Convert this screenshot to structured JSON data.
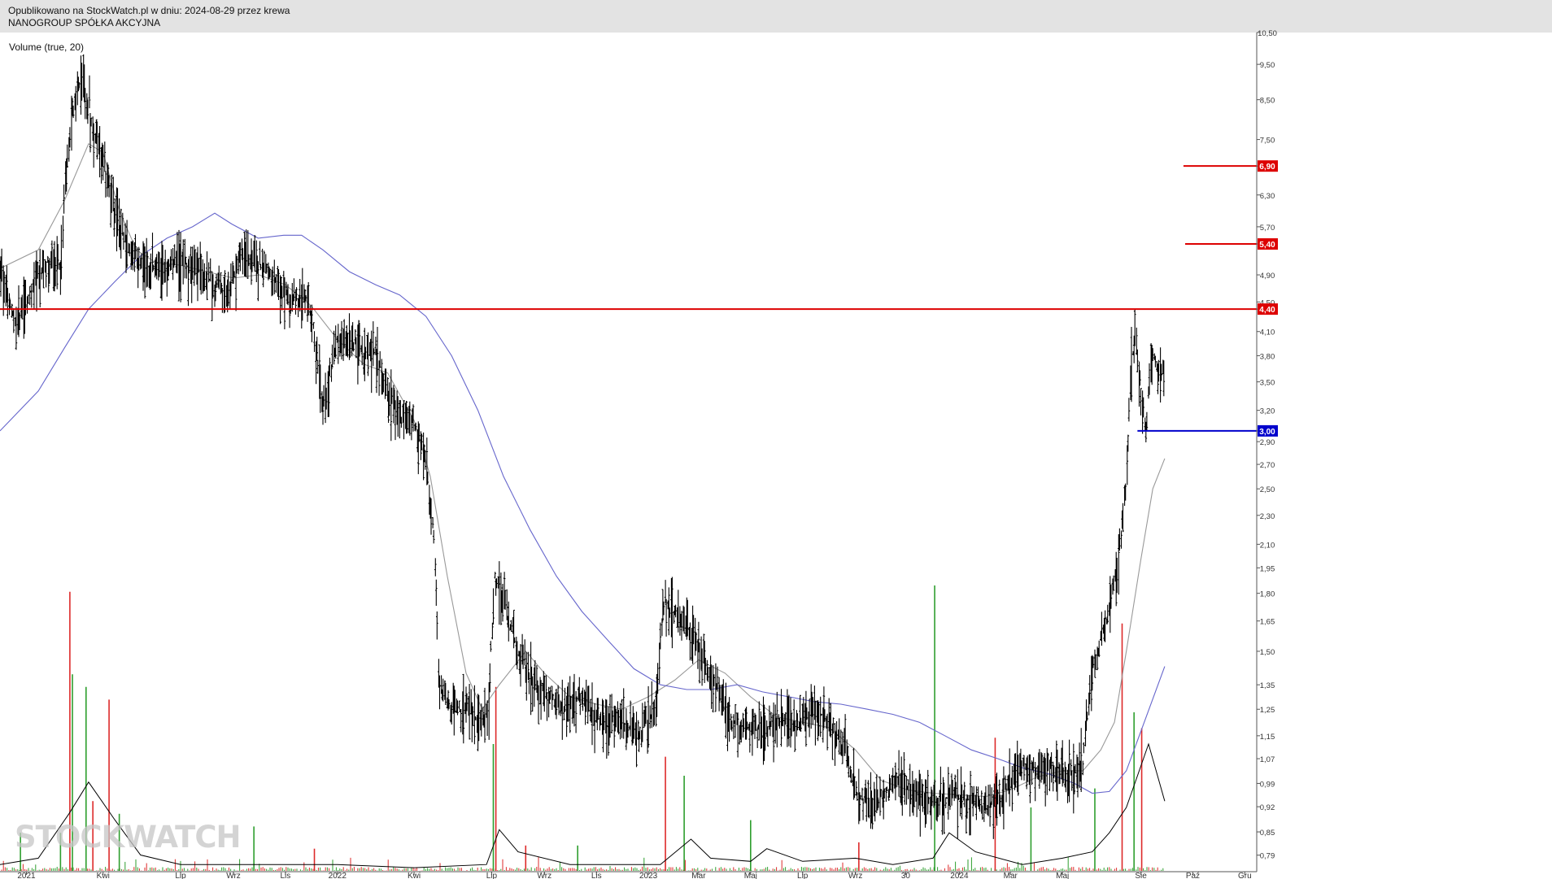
{
  "header": {
    "line1": "Opublikowano na StockWatch.pl w dniu: 2024-08-29 przez krewa",
    "line2": "NANOGROUP SPÓŁKA AKCYJNA"
  },
  "volume_label": "Volume (true, 20)",
  "watermark": "STOCKWATCH",
  "colors": {
    "price": "#000000",
    "ma_short": "#999999",
    "ma_long": "#6666cc",
    "level_red": "#dd0000",
    "level_blue": "#0000cc",
    "volume_up": "#2e9e2e",
    "volume_down": "#dd2a2a",
    "volume_avg": "#000000"
  },
  "chart_data": {
    "type": "line",
    "title": "NANOGROUP SPÓŁKA AKCYJNA",
    "x_axis": {
      "type": "date",
      "range": [
        "2020-12-01",
        "2024-12-15"
      ],
      "tick_labels": [
        {
          "label": "2021",
          "date": "2021-01-01"
        },
        {
          "label": "Kwi",
          "date": "2021-04-01"
        },
        {
          "label": "Lip",
          "date": "2021-07-01"
        },
        {
          "label": "Wrz",
          "date": "2021-09-01"
        },
        {
          "label": "Lis",
          "date": "2021-11-01"
        },
        {
          "label": "2022",
          "date": "2022-01-01"
        },
        {
          "label": "Kwi",
          "date": "2022-04-01"
        },
        {
          "label": "Lip",
          "date": "2022-07-01"
        },
        {
          "label": "Wrz",
          "date": "2022-09-01"
        },
        {
          "label": "Lis",
          "date": "2022-11-01"
        },
        {
          "label": "2023",
          "date": "2023-01-01"
        },
        {
          "label": "Mar",
          "date": "2023-03-01"
        },
        {
          "label": "Maj",
          "date": "2023-05-01"
        },
        {
          "label": "Lip",
          "date": "2023-07-01"
        },
        {
          "label": "Wrz",
          "date": "2023-09-01"
        },
        {
          "label": "30",
          "date": "2023-10-30"
        },
        {
          "label": "2024",
          "date": "2024-01-01"
        },
        {
          "label": "Mar",
          "date": "2024-03-01"
        },
        {
          "label": "Maj",
          "date": "2024-05-01"
        },
        {
          "label": "Sie",
          "date": "2024-08-01"
        },
        {
          "label": "Paź",
          "date": "2024-10-01"
        },
        {
          "label": "Gru",
          "date": "2024-12-01"
        }
      ]
    },
    "y_axis": {
      "scale": "log",
      "range": [
        0.75,
        10.5
      ],
      "tick_labels": [
        "10,50",
        "9,50",
        "8,50",
        "7,50",
        "6,90",
        "6,30",
        "5,70",
        "5,40",
        "4,90",
        "4,50",
        "4,40",
        "4,10",
        "3,80",
        "3,50",
        "3,20",
        "3,00",
        "2,90",
        "2,70",
        "2,50",
        "2,30",
        "2,10",
        "1,95",
        "1,80",
        "1,65",
        "1,50",
        "1,35",
        "1,25",
        "1,15",
        "1,07",
        "0,99",
        "0,92",
        "0,85",
        "0,79"
      ],
      "tick_values": [
        10.5,
        9.5,
        8.5,
        7.5,
        6.9,
        6.3,
        5.7,
        5.4,
        4.9,
        4.5,
        4.4,
        4.1,
        3.8,
        3.5,
        3.2,
        3.0,
        2.9,
        2.7,
        2.5,
        2.3,
        2.1,
        1.95,
        1.8,
        1.65,
        1.5,
        1.35,
        1.25,
        1.15,
        1.07,
        0.99,
        0.92,
        0.85,
        0.79
      ]
    },
    "grid": false,
    "series": [
      {
        "key": "price",
        "style": "ohlc",
        "x": [
          "2020-12-01",
          "2020-12-20",
          "2021-01-10",
          "2021-01-25",
          "2021-02-10",
          "2021-02-20",
          "2021-03-01",
          "2021-03-10",
          "2021-03-20",
          "2021-04-01",
          "2021-04-15",
          "2021-05-01",
          "2021-05-20",
          "2021-06-10",
          "2021-07-01",
          "2021-07-20",
          "2021-08-10",
          "2021-08-25",
          "2021-09-10",
          "2021-09-25",
          "2021-10-10",
          "2021-10-25",
          "2021-11-10",
          "2021-11-25",
          "2021-12-05",
          "2021-12-15",
          "2022-01-01",
          "2022-01-15",
          "2022-02-01",
          "2022-02-15",
          "2022-03-01",
          "2022-03-15",
          "2022-03-25",
          "2022-04-05",
          "2022-04-15",
          "2022-04-25",
          "2022-05-01",
          "2022-05-15",
          "2022-06-01",
          "2022-06-20",
          "2022-06-28",
          "2022-07-05",
          "2022-07-15",
          "2022-08-01",
          "2022-08-20",
          "2022-09-10",
          "2022-09-25",
          "2022-10-10",
          "2022-10-25",
          "2022-11-10",
          "2022-12-01",
          "2022-12-20",
          "2023-01-10",
          "2023-01-20",
          "2023-02-10",
          "2023-03-01",
          "2023-03-20",
          "2023-04-10",
          "2023-05-01",
          "2023-05-20",
          "2023-06-10",
          "2023-07-01",
          "2023-07-15",
          "2023-08-01",
          "2023-08-20",
          "2023-09-05",
          "2023-09-20",
          "2023-10-10",
          "2023-10-25",
          "2023-11-10",
          "2023-12-01",
          "2023-12-20",
          "2024-01-10",
          "2024-02-01",
          "2024-02-20",
          "2024-03-01",
          "2024-03-15",
          "2024-04-01",
          "2024-04-20",
          "2024-05-10",
          "2024-05-25",
          "2024-06-05",
          "2024-06-15",
          "2024-06-25",
          "2024-07-05",
          "2024-07-15",
          "2024-07-22",
          "2024-07-26",
          "2024-08-02",
          "2024-08-08",
          "2024-08-14",
          "2024-08-20",
          "2024-08-29"
        ],
        "close": [
          4.9,
          4.2,
          4.75,
          5.1,
          5.0,
          7.5,
          8.8,
          9.0,
          7.8,
          7.0,
          6.0,
          5.3,
          5.0,
          5.05,
          5.1,
          5.0,
          4.75,
          4.6,
          5.15,
          5.1,
          5.0,
          4.75,
          4.5,
          4.6,
          4.1,
          3.2,
          4.0,
          4.05,
          3.8,
          3.85,
          3.4,
          3.1,
          3.2,
          3.0,
          2.7,
          2.1,
          1.35,
          1.25,
          1.25,
          1.2,
          1.25,
          1.9,
          1.75,
          1.5,
          1.35,
          1.3,
          1.25,
          1.3,
          1.25,
          1.2,
          1.2,
          1.15,
          1.25,
          1.75,
          1.65,
          1.5,
          1.35,
          1.2,
          1.17,
          1.18,
          1.2,
          1.2,
          1.25,
          1.2,
          1.1,
          0.95,
          0.92,
          0.97,
          1.0,
          0.95,
          0.93,
          0.95,
          0.94,
          0.92,
          0.95,
          1.0,
          1.05,
          1.04,
          1.04,
          1.02,
          1.05,
          1.4,
          1.55,
          1.7,
          1.95,
          2.5,
          3.8,
          4.0,
          3.3,
          3.0,
          3.9,
          3.7,
          3.6
        ]
      },
      {
        "key": "ma_short",
        "style": "line",
        "x": [
          "2020-12-01",
          "2021-01-15",
          "2021-02-15",
          "2021-03-15",
          "2021-04-01",
          "2021-04-20",
          "2021-05-10",
          "2021-06-01",
          "2021-07-01",
          "2021-08-01",
          "2021-09-01",
          "2021-10-01",
          "2021-11-01",
          "2021-12-01",
          "2022-01-01",
          "2022-02-01",
          "2022-03-01",
          "2022-04-01",
          "2022-04-20",
          "2022-05-10",
          "2022-06-01",
          "2022-06-20",
          "2022-07-10",
          "2022-08-10",
          "2022-09-01",
          "2022-10-01",
          "2022-11-01",
          "2022-12-01",
          "2023-01-01",
          "2023-02-01",
          "2023-03-01",
          "2023-04-01",
          "2023-05-01",
          "2023-06-01",
          "2023-07-01",
          "2023-08-01",
          "2023-09-01",
          "2023-10-01",
          "2023-11-01",
          "2023-12-01",
          "2024-01-01",
          "2024-02-01",
          "2024-03-01",
          "2024-04-01",
          "2024-05-01",
          "2024-05-25",
          "2024-06-15",
          "2024-07-01",
          "2024-07-15",
          "2024-08-01",
          "2024-08-15",
          "2024-08-29"
        ],
        "values": [
          5.0,
          5.3,
          6.2,
          7.4,
          7.2,
          6.0,
          5.3,
          5.1,
          5.05,
          4.95,
          4.85,
          4.9,
          4.75,
          4.45,
          4.0,
          3.7,
          3.6,
          3.1,
          2.6,
          1.9,
          1.4,
          1.25,
          1.35,
          1.5,
          1.4,
          1.3,
          1.27,
          1.25,
          1.3,
          1.37,
          1.46,
          1.4,
          1.3,
          1.22,
          1.2,
          1.18,
          1.1,
          1.0,
          0.97,
          0.96,
          0.955,
          0.95,
          0.97,
          1.01,
          1.03,
          1.03,
          1.1,
          1.2,
          1.5,
          2.0,
          2.5,
          2.75
        ]
      },
      {
        "key": "ma_long",
        "style": "line",
        "x": [
          "2020-12-01",
          "2021-01-15",
          "2021-02-15",
          "2021-03-15",
          "2021-04-15",
          "2021-05-15",
          "2021-06-15",
          "2021-07-15",
          "2021-08-10",
          "2021-08-30",
          "2021-09-30",
          "2021-10-30",
          "2021-11-20",
          "2021-12-15",
          "2022-01-15",
          "2022-02-15",
          "2022-03-15",
          "2022-04-15",
          "2022-05-15",
          "2022-06-15",
          "2022-07-15",
          "2022-08-15",
          "2022-09-15",
          "2022-10-15",
          "2022-11-15",
          "2022-12-15",
          "2023-01-15",
          "2023-02-15",
          "2023-03-15",
          "2023-04-15",
          "2023-05-15",
          "2023-06-15",
          "2023-07-15",
          "2023-08-15",
          "2023-09-15",
          "2023-10-15",
          "2023-11-15",
          "2023-12-15",
          "2024-01-15",
          "2024-02-15",
          "2024-03-15",
          "2024-04-15",
          "2024-05-15",
          "2024-06-05",
          "2024-06-25",
          "2024-07-15",
          "2024-08-05",
          "2024-08-29"
        ],
        "values": [
          3.0,
          3.4,
          3.9,
          4.4,
          4.8,
          5.2,
          5.5,
          5.7,
          5.95,
          5.75,
          5.5,
          5.55,
          5.55,
          5.3,
          4.95,
          4.75,
          4.6,
          4.3,
          3.8,
          3.2,
          2.6,
          2.2,
          1.9,
          1.7,
          1.55,
          1.42,
          1.35,
          1.33,
          1.33,
          1.35,
          1.32,
          1.3,
          1.28,
          1.27,
          1.25,
          1.23,
          1.2,
          1.15,
          1.1,
          1.07,
          1.04,
          1.02,
          0.99,
          0.96,
          0.965,
          1.03,
          1.2,
          1.43
        ]
      }
    ],
    "levels": [
      {
        "label": "6,90",
        "value": 6.9,
        "from": "2024-09-20",
        "color": "red"
      },
      {
        "label": "5,40",
        "value": 5.4,
        "from": "2024-09-22",
        "color": "red"
      },
      {
        "label": "4,40",
        "value": 4.4,
        "from": "2020-12-01",
        "color": "red"
      },
      {
        "label": "3,00",
        "value": 3.0,
        "from": "2024-07-28",
        "color": "blue"
      }
    ],
    "volume": {
      "label": "Volume (true, 20)",
      "spikes": [
        {
          "date": "2020-12-25",
          "value": 0.12,
          "up": true
        },
        {
          "date": "2021-02-10",
          "value": 0.12,
          "up": true
        },
        {
          "date": "2021-02-21",
          "value": 0.88,
          "up": false
        },
        {
          "date": "2021-02-24",
          "value": 0.62,
          "up": true
        },
        {
          "date": "2021-03-12",
          "value": 0.58,
          "up": true
        },
        {
          "date": "2021-03-20",
          "value": 0.22,
          "up": false
        },
        {
          "date": "2021-04-08",
          "value": 0.54,
          "up": false
        },
        {
          "date": "2021-04-20",
          "value": 0.18,
          "up": true
        },
        {
          "date": "2021-09-25",
          "value": 0.14,
          "up": true
        },
        {
          "date": "2021-12-05",
          "value": 0.07,
          "up": false
        },
        {
          "date": "2022-07-03",
          "value": 0.4,
          "up": true
        },
        {
          "date": "2022-07-06",
          "value": 0.58,
          "up": false
        },
        {
          "date": "2022-08-10",
          "value": 0.08,
          "up": false
        },
        {
          "date": "2022-10-10",
          "value": 0.08,
          "up": true
        },
        {
          "date": "2023-01-21",
          "value": 0.36,
          "up": false
        },
        {
          "date": "2023-02-12",
          "value": 0.3,
          "up": true
        },
        {
          "date": "2023-05-01",
          "value": 0.16,
          "up": true
        },
        {
          "date": "2023-09-05",
          "value": 0.09,
          "up": false
        },
        {
          "date": "2023-12-03",
          "value": 0.9,
          "up": true
        },
        {
          "date": "2024-02-12",
          "value": 0.42,
          "up": false
        },
        {
          "date": "2024-03-25",
          "value": 0.2,
          "up": true
        },
        {
          "date": "2024-06-08",
          "value": 0.26,
          "up": true
        },
        {
          "date": "2024-07-10",
          "value": 0.78,
          "up": false
        },
        {
          "date": "2024-07-24",
          "value": 0.5,
          "up": true
        },
        {
          "date": "2024-08-02",
          "value": 0.45,
          "up": false
        }
      ],
      "avg_x": [
        "2020-12-01",
        "2021-01-15",
        "2021-02-20",
        "2021-03-15",
        "2021-04-15",
        "2021-05-15",
        "2021-07-01",
        "2021-10-01",
        "2022-01-01",
        "2022-04-01",
        "2022-06-25",
        "2022-07-10",
        "2022-08-01",
        "2022-10-01",
        "2023-01-15",
        "2023-02-20",
        "2023-03-15",
        "2023-05-01",
        "2023-05-20",
        "2023-07-01",
        "2023-09-01",
        "2023-10-15",
        "2023-12-01",
        "2023-12-20",
        "2024-01-20",
        "2024-03-15",
        "2024-05-01",
        "2024-06-05",
        "2024-06-25",
        "2024-07-15",
        "2024-07-28",
        "2024-08-10",
        "2024-08-29"
      ],
      "avg_values": [
        0.02,
        0.04,
        0.18,
        0.28,
        0.16,
        0.05,
        0.02,
        0.02,
        0.02,
        0.01,
        0.02,
        0.13,
        0.06,
        0.02,
        0.02,
        0.1,
        0.04,
        0.03,
        0.07,
        0.03,
        0.04,
        0.02,
        0.04,
        0.12,
        0.06,
        0.02,
        0.04,
        0.06,
        0.12,
        0.2,
        0.3,
        0.4,
        0.22
      ]
    }
  }
}
